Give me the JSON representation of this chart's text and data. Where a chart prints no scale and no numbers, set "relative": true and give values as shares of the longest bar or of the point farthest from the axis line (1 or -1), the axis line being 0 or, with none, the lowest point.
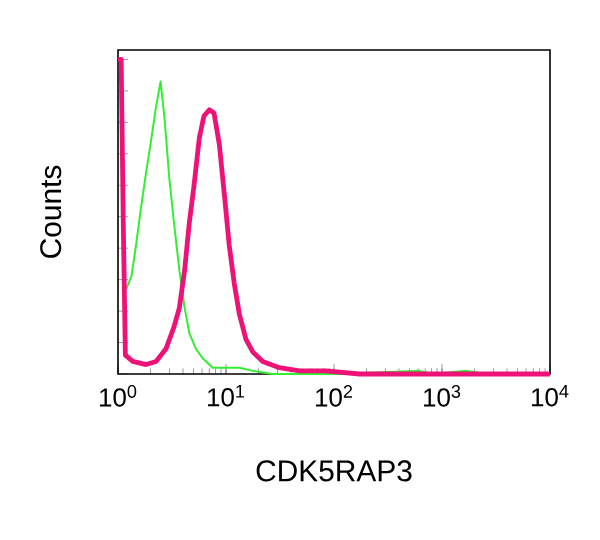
{
  "chart_data": {
    "type": "line",
    "xlabel": "CDK5RAP3",
    "ylabel": "Counts",
    "relative": true,
    "log": "x",
    "xlim": [
      1,
      10000
    ],
    "xticks": [
      {
        "value": 1,
        "label": "10$^{0}$"
      },
      {
        "value": 10,
        "label": "10$^{1}$"
      },
      {
        "value": 100,
        "label": "10$^{2}$"
      },
      {
        "value": 1000,
        "label": "10$^{3}$"
      },
      {
        "value": 10000,
        "label": "10$^{4}$"
      }
    ],
    "marker": "none",
    "line_style": "solid",
    "series": [
      {
        "color": "#33ee33",
        "x": [
          1.19,
          1.33,
          1.47,
          1.62,
          1.82,
          2.04,
          2.25,
          2.48,
          2.7,
          2.99,
          3.3,
          3.7,
          4.14,
          4.57,
          5.27,
          6.08,
          7.53,
          10.0,
          13.3,
          17.7,
          27.0,
          84.3,
          112,
          617,
          820,
          1667,
          2550,
          10000
        ],
        "values": [
          0.27,
          0.31,
          0.41,
          0.52,
          0.64,
          0.75,
          0.85,
          0.93,
          0.81,
          0.62,
          0.48,
          0.33,
          0.21,
          0.13,
          0.08,
          0.05,
          0.02,
          0.02,
          0.02,
          0.01,
          0,
          null,
          0,
          0.01,
          0,
          0.01,
          0,
          0
        ]
      },
      {
        "color": "#ee1177",
        "x": [
          1.0,
          1.07,
          1.12,
          1.17,
          1.37,
          1.82,
          2.25,
          2.78,
          3.3,
          3.7,
          4.14,
          4.57,
          5.06,
          5.66,
          6.25,
          7.01,
          7.74,
          8.67,
          9.72,
          10.7,
          11.9,
          13.3,
          15.3,
          17.7,
          21.9,
          31.2,
          47.8,
          84.3,
          172,
          10000
        ],
        "values": [
          1.0,
          1.0,
          0.47,
          0.06,
          0.04,
          0.03,
          0.04,
          0.08,
          0.15,
          0.21,
          0.33,
          0.48,
          0.6,
          0.75,
          0.82,
          0.84,
          0.83,
          0.73,
          0.56,
          0.41,
          0.29,
          0.19,
          0.11,
          0.07,
          0.04,
          0.02,
          0.01,
          0.01,
          0,
          0
        ]
      }
    ]
  }
}
